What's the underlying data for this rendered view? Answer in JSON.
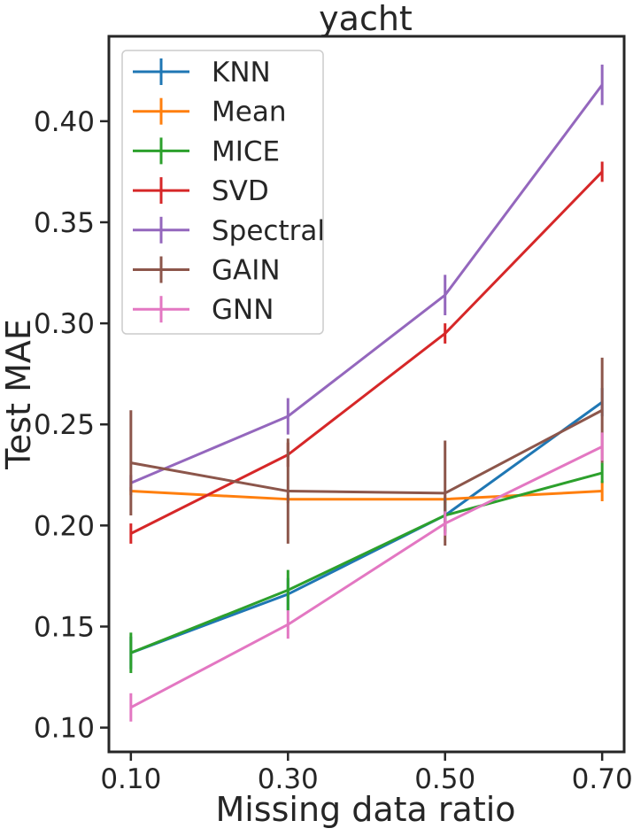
{
  "chart_data": {
    "type": "line",
    "title": "yacht",
    "xlabel": "Missing data ratio",
    "ylabel": "Test MAE",
    "x": [
      0.1,
      0.3,
      0.5,
      0.7
    ],
    "x_tick_labels": [
      "0.10",
      "0.30",
      "0.50",
      "0.70"
    ],
    "y_ticks": [
      0.1,
      0.15,
      0.2,
      0.25,
      0.3,
      0.35,
      0.4
    ],
    "y_tick_labels": [
      "0.10",
      "0.15",
      "0.20",
      "0.25",
      "0.30",
      "0.35",
      "0.40"
    ],
    "xlim": [
      0.072,
      0.728
    ],
    "ylim": [
      0.088,
      0.442
    ],
    "grid": false,
    "legend_position": "top-left",
    "series": [
      {
        "name": "KNN",
        "color": "#1f77b4",
        "values": [
          0.137,
          0.166,
          0.205,
          0.261
        ],
        "errors": [
          0.008,
          0.008,
          0.009,
          0.007
        ]
      },
      {
        "name": "Mean",
        "color": "#ff7f0e",
        "values": [
          0.217,
          0.213,
          0.213,
          0.217
        ],
        "errors": [
          0.002,
          0.002,
          0.002,
          0.005
        ]
      },
      {
        "name": "MICE",
        "color": "#2ca02c",
        "values": [
          0.137,
          0.168,
          0.205,
          0.226
        ],
        "errors": [
          0.01,
          0.01,
          0.008,
          0.005
        ]
      },
      {
        "name": "SVD",
        "color": "#d62728",
        "values": [
          0.196,
          0.235,
          0.295,
          0.375
        ],
        "errors": [
          0.005,
          0.006,
          0.005,
          0.005
        ]
      },
      {
        "name": "Spectral",
        "color": "#9467bd",
        "values": [
          0.221,
          0.254,
          0.314,
          0.418
        ],
        "errors": [
          0.004,
          0.009,
          0.01,
          0.01
        ]
      },
      {
        "name": "GAIN",
        "color": "#8c564b",
        "values": [
          0.231,
          0.217,
          0.216,
          0.257
        ],
        "errors": [
          0.026,
          0.026,
          0.026,
          0.026
        ]
      },
      {
        "name": "GNN",
        "color": "#e377c2",
        "values": [
          0.11,
          0.151,
          0.201,
          0.239
        ],
        "errors": [
          0.007,
          0.007,
          0.006,
          0.007
        ]
      }
    ]
  }
}
